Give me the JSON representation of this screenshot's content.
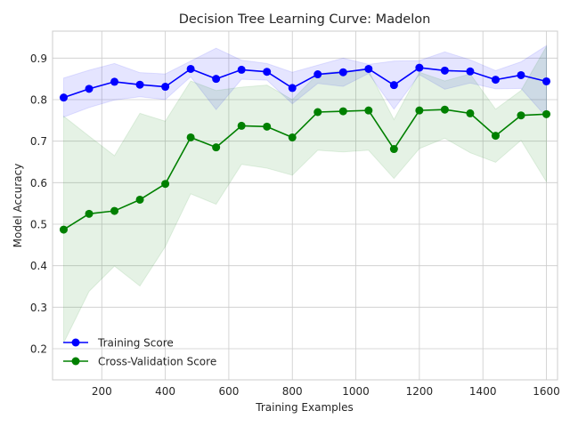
{
  "chart_data": {
    "type": "line",
    "title": "Decision Tree Learning Curve: Madelon",
    "xlabel": "Training Examples",
    "ylabel": "Model Accuracy",
    "xlim": [
      45,
      1635
    ],
    "ylim": [
      0.125,
      0.965
    ],
    "xticks": [
      200,
      400,
      600,
      800,
      1000,
      1200,
      1400,
      1600
    ],
    "yticks": [
      0.2,
      0.3,
      0.4,
      0.5,
      0.6,
      0.7,
      0.8,
      0.9
    ],
    "grid": true,
    "legend_position": "bottom-left",
    "x": [
      80,
      160,
      240,
      320,
      400,
      480,
      560,
      640,
      720,
      800,
      880,
      960,
      1040,
      1120,
      1200,
      1280,
      1360,
      1440,
      1520,
      1600
    ],
    "series": [
      {
        "name": "Training Score",
        "color": "#0000ff",
        "values": [
          0.805,
          0.826,
          0.843,
          0.836,
          0.831,
          0.874,
          0.85,
          0.872,
          0.867,
          0.828,
          0.861,
          0.866,
          0.874,
          0.835,
          0.877,
          0.87,
          0.868,
          0.848,
          0.859,
          0.844
        ],
        "band_upper": [
          0.852,
          0.871,
          0.887,
          0.865,
          0.862,
          0.893,
          0.924,
          0.895,
          0.887,
          0.866,
          0.883,
          0.9,
          0.885,
          0.893,
          0.894,
          0.915,
          0.896,
          0.87,
          0.891,
          0.93
        ],
        "band_lower": [
          0.758,
          0.781,
          0.799,
          0.807,
          0.8,
          0.855,
          0.776,
          0.849,
          0.847,
          0.79,
          0.839,
          0.832,
          0.863,
          0.777,
          0.86,
          0.825,
          0.84,
          0.826,
          0.827,
          0.758
        ]
      },
      {
        "name": "Cross-Validation Score",
        "color": "#008000",
        "values": [
          0.487,
          0.525,
          0.532,
          0.559,
          0.597,
          0.709,
          0.685,
          0.737,
          0.735,
          0.709,
          0.77,
          0.772,
          0.774,
          0.681,
          0.774,
          0.776,
          0.767,
          0.713,
          0.762,
          0.765
        ],
        "band_upper": [
          0.76,
          0.712,
          0.665,
          0.767,
          0.748,
          0.845,
          0.822,
          0.83,
          0.835,
          0.8,
          0.862,
          0.87,
          0.87,
          0.752,
          0.866,
          0.845,
          0.862,
          0.777,
          0.822,
          0.928
        ],
        "band_lower": [
          0.214,
          0.338,
          0.399,
          0.351,
          0.446,
          0.573,
          0.548,
          0.644,
          0.635,
          0.618,
          0.678,
          0.674,
          0.678,
          0.61,
          0.682,
          0.707,
          0.672,
          0.649,
          0.702,
          0.602
        ]
      }
    ]
  }
}
